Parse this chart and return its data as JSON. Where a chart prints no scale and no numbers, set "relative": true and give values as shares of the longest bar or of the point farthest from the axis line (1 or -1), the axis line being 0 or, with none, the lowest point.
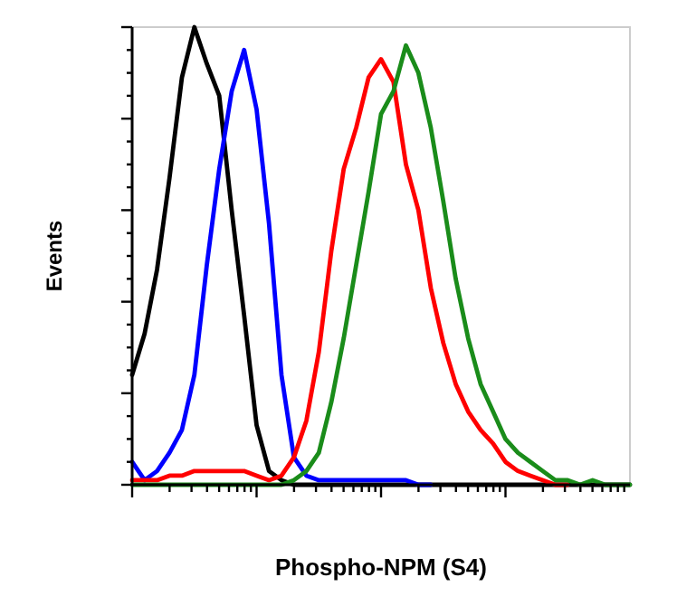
{
  "chart_data": {
    "type": "line",
    "relative": true,
    "xlabel": "Phospho-NPM (S4)",
    "ylabel": "Events",
    "grid": false,
    "line_style": "solid",
    "categories": [
      null,
      null,
      null,
      null,
      null,
      null,
      null,
      null,
      null,
      null,
      null,
      null,
      null,
      null,
      null,
      null,
      null,
      null,
      null,
      null,
      null,
      null,
      null,
      null,
      null,
      null,
      null,
      null,
      null,
      null,
      null,
      null,
      null,
      null,
      null,
      null,
      null,
      null,
      null,
      null,
      null
    ],
    "series": [
      {
        "color": "#000000",
        "values": [
          0.24,
          0.33,
          0.47,
          0.67,
          0.89,
          1.0,
          0.92,
          0.85,
          0.6,
          0.37,
          0.13,
          0.03,
          0.01,
          0,
          0,
          0,
          0,
          0,
          0,
          0,
          0,
          0,
          0,
          0,
          0,
          0,
          0,
          0,
          0,
          0,
          0,
          0,
          0,
          0,
          0,
          0,
          0,
          0,
          0,
          0,
          0
        ]
      },
      {
        "color": "#0000ff",
        "values": [
          0.05,
          0.01,
          0.03,
          0.07,
          0.12,
          0.24,
          0.48,
          0.69,
          0.86,
          0.95,
          0.82,
          0.57,
          0.24,
          0.06,
          0.02,
          0.01,
          0.01,
          0.01,
          0.01,
          0.01,
          0.01,
          0.01,
          0.01,
          0,
          0,
          null,
          null,
          null,
          null,
          null,
          null,
          null,
          null,
          null,
          null,
          null,
          null,
          null,
          null,
          null,
          null
        ]
      },
      {
        "color": "#ff0000",
        "values": [
          0.01,
          0.01,
          0.01,
          0.02,
          0.02,
          0.03,
          0.03,
          0.03,
          0.03,
          0.03,
          0.02,
          0.01,
          0.02,
          0.06,
          0.14,
          0.29,
          0.51,
          0.69,
          0.78,
          0.89,
          0.93,
          0.88,
          0.7,
          0.6,
          0.43,
          0.31,
          0.22,
          0.16,
          0.12,
          0.09,
          0.05,
          0.03,
          0.02,
          0.01,
          0,
          0,
          null,
          null,
          null,
          null,
          null
        ]
      },
      {
        "color": "#1a8c1a",
        "values": [
          0,
          0,
          0,
          0,
          0,
          0,
          0,
          0,
          0,
          0,
          0,
          0,
          0,
          0.01,
          0.03,
          0.07,
          0.18,
          0.32,
          0.48,
          0.64,
          0.81,
          0.86,
          0.96,
          0.9,
          0.78,
          0.62,
          0.45,
          0.32,
          0.22,
          0.16,
          0.1,
          0.07,
          0.05,
          0.03,
          0.01,
          0.01,
          0,
          0.01,
          0,
          0,
          0
        ]
      }
    ]
  }
}
